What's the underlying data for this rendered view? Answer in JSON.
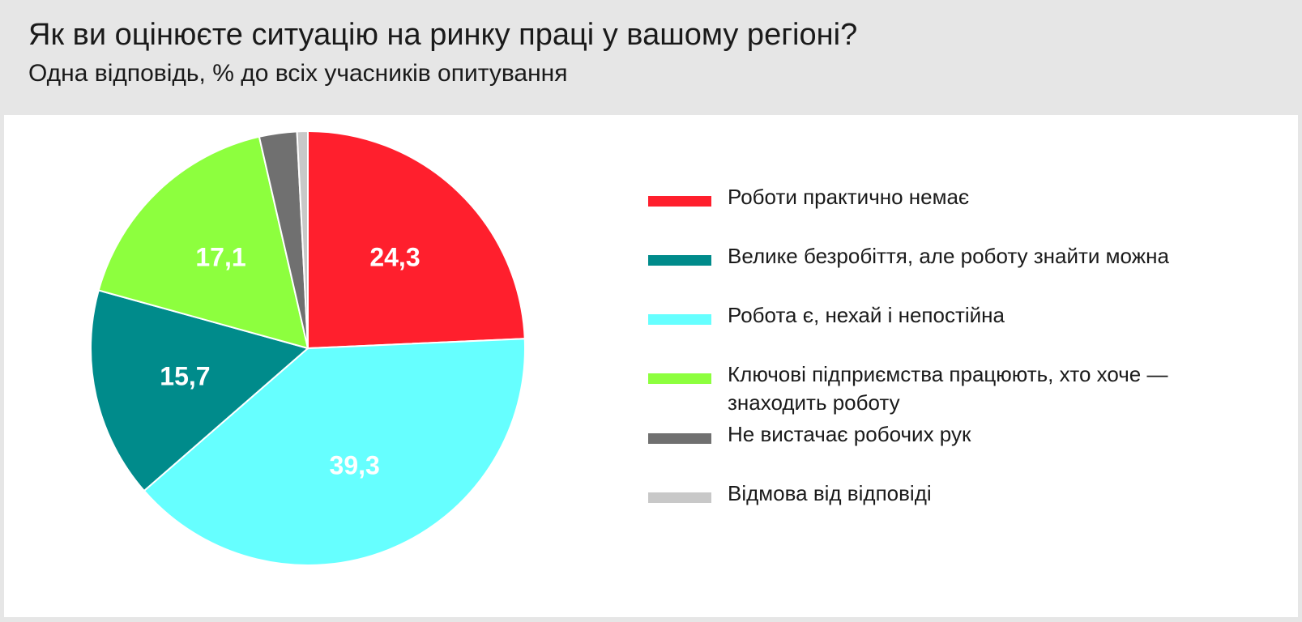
{
  "header": {
    "title": "Як ви оцінюєте ситуацію на ринку праці у вашому регіоні?",
    "subtitle": "Одна відповідь, % до всіх учасників опитування"
  },
  "colors": {
    "header_bg": "#e6e6e6",
    "panel_bg": "#ffffff"
  },
  "chart_data": {
    "type": "pie",
    "start": "12 o'clock",
    "direction": "clockwise",
    "slices": [
      {
        "name": "Роботи практично немає",
        "value": 24.3,
        "label": "24,3",
        "color": "#ff1f2d"
      },
      {
        "name": "Робота є, нехай і непостійна",
        "value": 39.3,
        "label": "39,3",
        "color": "#66ffff"
      },
      {
        "name": "Велике безробіття, але роботу знайти можна",
        "value": 15.7,
        "label": "15,7",
        "color": "#008b8b"
      },
      {
        "name": "Ключові підприємства працюють, хто хоче — знаходить роботу",
        "value": 17.1,
        "label": "17,1",
        "color": "#8dff3e"
      },
      {
        "name": "Не вистачає робочих рук",
        "value": 2.8,
        "label": "",
        "color": "#707070"
      },
      {
        "name": "Відмова від відповіді",
        "value": 0.8,
        "label": "",
        "color": "#c8c8c8"
      }
    ],
    "legend_position": "right",
    "legend": [
      {
        "label": "Роботи практично немає",
        "color": "#ff1f2d"
      },
      {
        "label": "Велике безробіття, але роботу знайти можна",
        "color": "#008b8b"
      },
      {
        "label": "Робота є, нехай і непостійна",
        "color": "#66ffff"
      },
      {
        "label": "Ключові підприємства працюють, хто хоче — знаходить роботу",
        "color": "#8dff3e"
      },
      {
        "label": "Не вистачає робочих рук",
        "color": "#707070"
      },
      {
        "label": "Відмова від відповіді",
        "color": "#c8c8c8"
      }
    ]
  }
}
